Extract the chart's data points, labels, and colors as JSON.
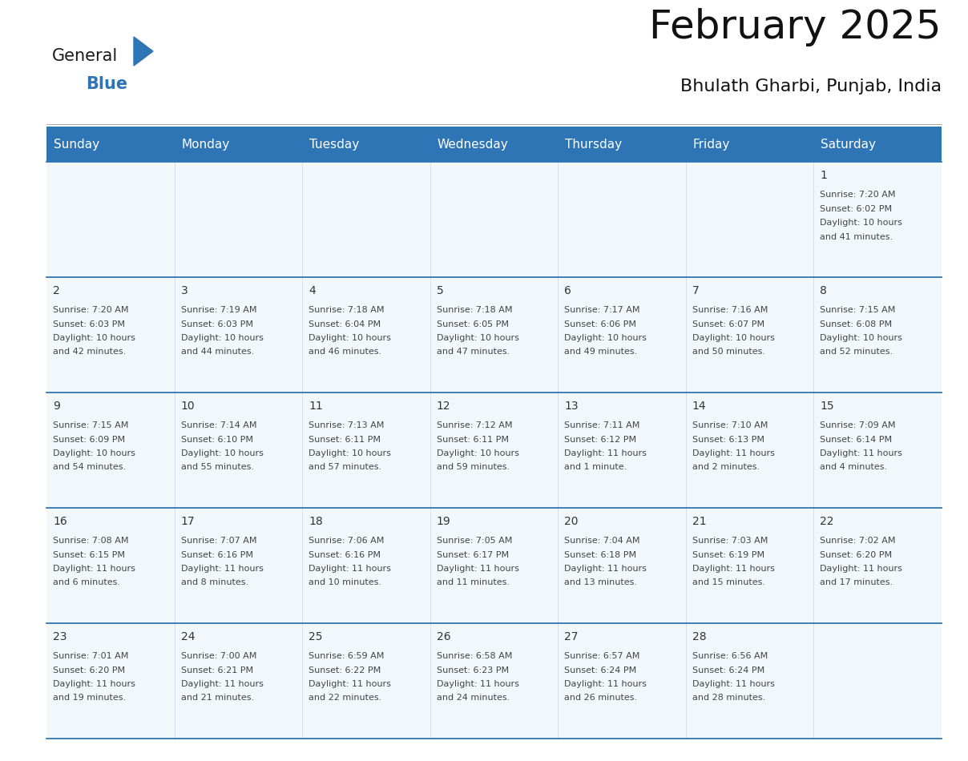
{
  "title": "February 2025",
  "subtitle": "Bhulath Gharbi, Punjab, India",
  "header_color": "#2e75b6",
  "header_text_color": "#ffffff",
  "cell_bg_even": "#ffffff",
  "cell_bg_odd": "#f2f7fb",
  "cell_text_color": "#333333",
  "grid_line_color": "#2e75b6",
  "days_of_week": [
    "Sunday",
    "Monday",
    "Tuesday",
    "Wednesday",
    "Thursday",
    "Friday",
    "Saturday"
  ],
  "calendar_data": [
    [
      null,
      null,
      null,
      null,
      null,
      null,
      {
        "day": 1,
        "sunrise": "7:20 AM",
        "sunset": "6:02 PM",
        "daylight": "10 hours and 41 minutes."
      }
    ],
    [
      {
        "day": 2,
        "sunrise": "7:20 AM",
        "sunset": "6:03 PM",
        "daylight": "10 hours and 42 minutes."
      },
      {
        "day": 3,
        "sunrise": "7:19 AM",
        "sunset": "6:03 PM",
        "daylight": "10 hours and 44 minutes."
      },
      {
        "day": 4,
        "sunrise": "7:18 AM",
        "sunset": "6:04 PM",
        "daylight": "10 hours and 46 minutes."
      },
      {
        "day": 5,
        "sunrise": "7:18 AM",
        "sunset": "6:05 PM",
        "daylight": "10 hours and 47 minutes."
      },
      {
        "day": 6,
        "sunrise": "7:17 AM",
        "sunset": "6:06 PM",
        "daylight": "10 hours and 49 minutes."
      },
      {
        "day": 7,
        "sunrise": "7:16 AM",
        "sunset": "6:07 PM",
        "daylight": "10 hours and 50 minutes."
      },
      {
        "day": 8,
        "sunrise": "7:15 AM",
        "sunset": "6:08 PM",
        "daylight": "10 hours and 52 minutes."
      }
    ],
    [
      {
        "day": 9,
        "sunrise": "7:15 AM",
        "sunset": "6:09 PM",
        "daylight": "10 hours and 54 minutes."
      },
      {
        "day": 10,
        "sunrise": "7:14 AM",
        "sunset": "6:10 PM",
        "daylight": "10 hours and 55 minutes."
      },
      {
        "day": 11,
        "sunrise": "7:13 AM",
        "sunset": "6:11 PM",
        "daylight": "10 hours and 57 minutes."
      },
      {
        "day": 12,
        "sunrise": "7:12 AM",
        "sunset": "6:11 PM",
        "daylight": "10 hours and 59 minutes."
      },
      {
        "day": 13,
        "sunrise": "7:11 AM",
        "sunset": "6:12 PM",
        "daylight": "11 hours and 1 minute."
      },
      {
        "day": 14,
        "sunrise": "7:10 AM",
        "sunset": "6:13 PM",
        "daylight": "11 hours and 2 minutes."
      },
      {
        "day": 15,
        "sunrise": "7:09 AM",
        "sunset": "6:14 PM",
        "daylight": "11 hours and 4 minutes."
      }
    ],
    [
      {
        "day": 16,
        "sunrise": "7:08 AM",
        "sunset": "6:15 PM",
        "daylight": "11 hours and 6 minutes."
      },
      {
        "day": 17,
        "sunrise": "7:07 AM",
        "sunset": "6:16 PM",
        "daylight": "11 hours and 8 minutes."
      },
      {
        "day": 18,
        "sunrise": "7:06 AM",
        "sunset": "6:16 PM",
        "daylight": "11 hours and 10 minutes."
      },
      {
        "day": 19,
        "sunrise": "7:05 AM",
        "sunset": "6:17 PM",
        "daylight": "11 hours and 11 minutes."
      },
      {
        "day": 20,
        "sunrise": "7:04 AM",
        "sunset": "6:18 PM",
        "daylight": "11 hours and 13 minutes."
      },
      {
        "day": 21,
        "sunrise": "7:03 AM",
        "sunset": "6:19 PM",
        "daylight": "11 hours and 15 minutes."
      },
      {
        "day": 22,
        "sunrise": "7:02 AM",
        "sunset": "6:20 PM",
        "daylight": "11 hours and 17 minutes."
      }
    ],
    [
      {
        "day": 23,
        "sunrise": "7:01 AM",
        "sunset": "6:20 PM",
        "daylight": "11 hours and 19 minutes."
      },
      {
        "day": 24,
        "sunrise": "7:00 AM",
        "sunset": "6:21 PM",
        "daylight": "11 hours and 21 minutes."
      },
      {
        "day": 25,
        "sunrise": "6:59 AM",
        "sunset": "6:22 PM",
        "daylight": "11 hours and 22 minutes."
      },
      {
        "day": 26,
        "sunrise": "6:58 AM",
        "sunset": "6:23 PM",
        "daylight": "11 hours and 24 minutes."
      },
      {
        "day": 27,
        "sunrise": "6:57 AM",
        "sunset": "6:24 PM",
        "daylight": "11 hours and 26 minutes."
      },
      {
        "day": 28,
        "sunrise": "6:56 AM",
        "sunset": "6:24 PM",
        "daylight": "11 hours and 28 minutes."
      },
      null
    ]
  ],
  "logo_color_general": "#1a1a1a",
  "logo_color_blue": "#2e75b6",
  "logo_triangle_color": "#2e75b6",
  "title_fontsize": 36,
  "subtitle_fontsize": 16,
  "dow_fontsize": 11,
  "day_num_fontsize": 10,
  "cell_text_fontsize": 8
}
